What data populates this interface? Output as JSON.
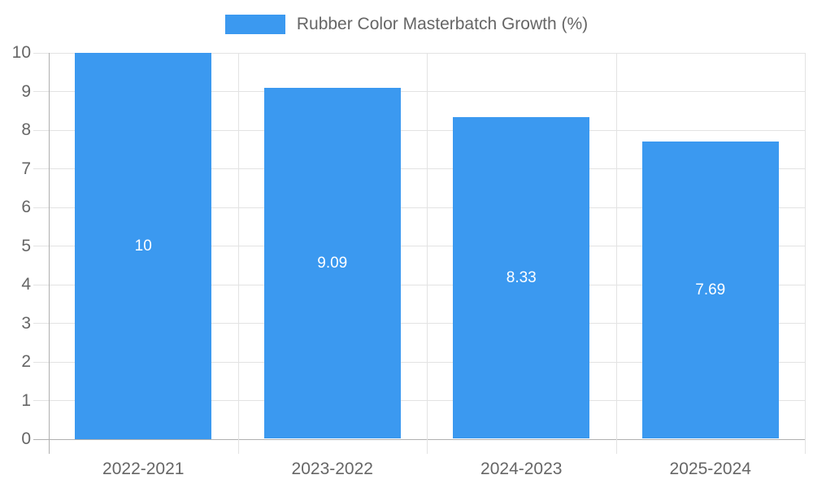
{
  "legend": {
    "label": "Rubber Color Masterbatch Growth (%)"
  },
  "chart_data": {
    "type": "bar",
    "title": "Rubber Color Masterbatch Growth (%)",
    "categories": [
      "2022-2021",
      "2023-2022",
      "2024-2023",
      "2025-2024"
    ],
    "values": [
      10,
      9.09,
      8.33,
      7.69
    ],
    "value_labels": [
      "10",
      "9.09",
      "8.33",
      "7.69"
    ],
    "xlabel": "",
    "ylabel": "",
    "ylim": [
      0,
      10
    ],
    "ytick_step": 1,
    "ytick_labels": [
      "0",
      "1",
      "2",
      "3",
      "4",
      "5",
      "6",
      "7",
      "8",
      "9",
      "10"
    ],
    "grid": true,
    "legend_position": "top"
  },
  "colors": {
    "bar": "#3b99f0",
    "grid_light": "#e3e3e3",
    "grid_dark": "#b0b0b0",
    "axis_text": "#666666",
    "value_text": "#ffffff",
    "background": "#ffffff"
  }
}
